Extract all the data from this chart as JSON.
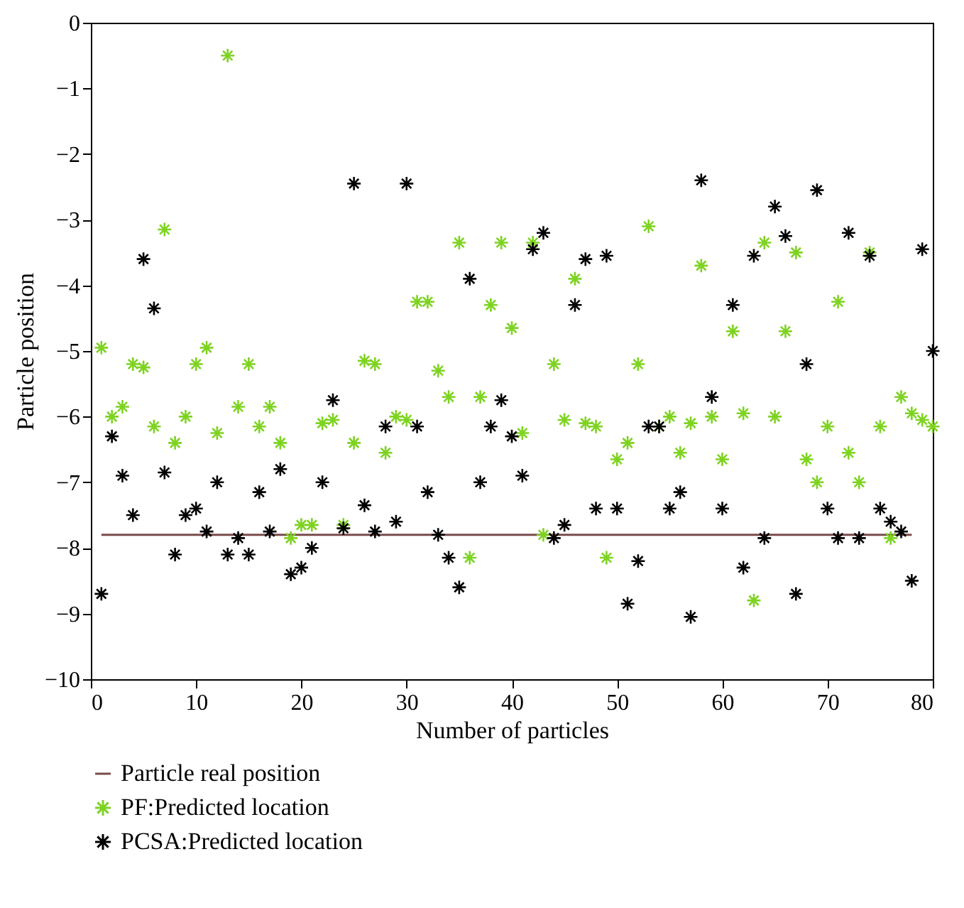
{
  "chart_data": {
    "type": "scatter",
    "xlabel": "Number of particles",
    "ylabel": "Particle position",
    "xlim": [
      0,
      80
    ],
    "xticks": [
      0,
      10,
      20,
      30,
      40,
      50,
      60,
      70,
      80
    ],
    "ylim": [
      -10,
      0
    ],
    "yticks": [
      -10,
      -9,
      -8,
      -7,
      -6,
      -5,
      -4,
      -3,
      -2,
      -1,
      0
    ],
    "grid": false,
    "legend": "bottom left",
    "series": [
      {
        "name": "Particle real position",
        "type": "line",
        "color": "#7a4b4b",
        "line_style": "solid",
        "x": [
          1,
          78
        ],
        "values": [
          -7.8,
          -7.8
        ]
      },
      {
        "name": "PF:Predicted location",
        "color": "#7ed321",
        "marker": "cross",
        "x": [
          1,
          2,
          3,
          4,
          5,
          6,
          7,
          8,
          9,
          10,
          11,
          12,
          13,
          14,
          15,
          16,
          17,
          18,
          19,
          20,
          21,
          22,
          23,
          24,
          25,
          26,
          27,
          28,
          29,
          30,
          31,
          32,
          33,
          34,
          35,
          36,
          37,
          38,
          39,
          40,
          41,
          42,
          43,
          44,
          45,
          46,
          47,
          48,
          49,
          50,
          51,
          52,
          53,
          54,
          55,
          56,
          57,
          58,
          59,
          60,
          61,
          62,
          63,
          64,
          65,
          66,
          67,
          68,
          69,
          70,
          71,
          72,
          73,
          74,
          75,
          76,
          77,
          78,
          79,
          80
        ],
        "values": [
          -4.95,
          -6.0,
          -5.85,
          -5.2,
          -5.25,
          -6.15,
          -3.15,
          -6.4,
          -6.0,
          -5.2,
          -4.95,
          -6.25,
          -0.5,
          -5.85,
          -5.2,
          -6.15,
          -5.85,
          -6.4,
          -7.85,
          -7.65,
          -7.65,
          -6.1,
          -6.05,
          -7.65,
          -6.4,
          -5.15,
          -5.2,
          -6.55,
          -6.0,
          -6.05,
          -4.25,
          -4.25,
          -5.3,
          -5.7,
          -3.35,
          -8.15,
          -5.7,
          -4.3,
          -3.35,
          -4.65,
          -6.25,
          -3.35,
          -7.8,
          -5.2,
          -6.05,
          -3.9,
          -6.1,
          -6.15,
          -8.15,
          -6.65,
          -6.4,
          -5.2,
          -3.1,
          -6.15,
          -6.0,
          -6.55,
          -6.1,
          -3.7,
          -6.0,
          -6.65,
          -4.7,
          -5.95,
          -8.8,
          -3.35,
          -6.0,
          -4.7,
          -3.5,
          -6.65,
          -7.0,
          -6.15,
          -4.25,
          -6.55,
          -7.0,
          -3.5,
          -6.15,
          -7.85,
          -5.7,
          -5.95,
          -6.05,
          -6.15
        ]
      },
      {
        "name": "PCSA:Predicted location",
        "color": "#000000",
        "marker": "cross",
        "x": [
          1,
          2,
          3,
          4,
          5,
          6,
          7,
          8,
          9,
          10,
          11,
          12,
          13,
          14,
          15,
          16,
          17,
          18,
          19,
          20,
          21,
          22,
          23,
          24,
          25,
          26,
          27,
          28,
          29,
          30,
          31,
          32,
          33,
          34,
          35,
          36,
          37,
          38,
          39,
          40,
          41,
          42,
          43,
          44,
          45,
          46,
          47,
          48,
          49,
          50,
          51,
          52,
          53,
          54,
          55,
          56,
          57,
          58,
          59,
          60,
          61,
          62,
          63,
          64,
          65,
          66,
          67,
          68,
          69,
          70,
          71,
          72,
          73,
          74,
          75,
          76,
          77,
          78,
          79,
          80
        ],
        "values": [
          -8.7,
          -6.3,
          -6.9,
          -7.5,
          -3.6,
          -4.35,
          -6.85,
          -8.1,
          -7.5,
          -7.4,
          -7.75,
          -7.0,
          -8.1,
          -7.85,
          -8.1,
          -7.15,
          -7.75,
          -6.8,
          -8.4,
          -8.3,
          -8.0,
          -7.0,
          -5.75,
          -7.7,
          -2.45,
          -7.35,
          -7.75,
          -6.15,
          -7.6,
          -2.45,
          -6.15,
          -7.15,
          -7.8,
          -8.15,
          -8.6,
          -3.9,
          -7.0,
          -6.15,
          -5.75,
          -6.3,
          -6.9,
          -3.45,
          -3.2,
          -7.85,
          -7.65,
          -4.3,
          -3.6,
          -7.4,
          -3.55,
          -7.4,
          -8.85,
          -8.2,
          -6.15,
          -6.15,
          -7.4,
          -7.15,
          -9.05,
          -2.4,
          -5.7,
          -7.4,
          -4.3,
          -8.3,
          -3.55,
          -7.85,
          -2.8,
          -3.25,
          -8.7,
          -5.2,
          -2.55,
          -7.4,
          -7.85,
          -3.2,
          -7.85,
          -3.55,
          -7.4,
          -7.6,
          -7.75,
          -8.5,
          -3.45,
          -5.0
        ]
      }
    ]
  }
}
